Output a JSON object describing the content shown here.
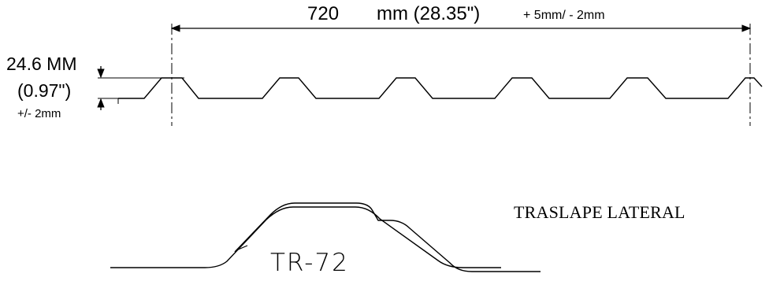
{
  "dimensions": {
    "width_value": "720",
    "width_unit": "mm (28.35\")",
    "width_tolerance": "+ 5mm/ - 2mm",
    "height_mm": "24.6 MM",
    "height_in": "(0.97\")",
    "height_tolerance": "+/- 2mm"
  },
  "detail": {
    "overlap_label": "TRASLAPE LATERAL",
    "model_label": "TR-72"
  },
  "colors": {
    "line": "#000000",
    "background": "#ffffff"
  }
}
